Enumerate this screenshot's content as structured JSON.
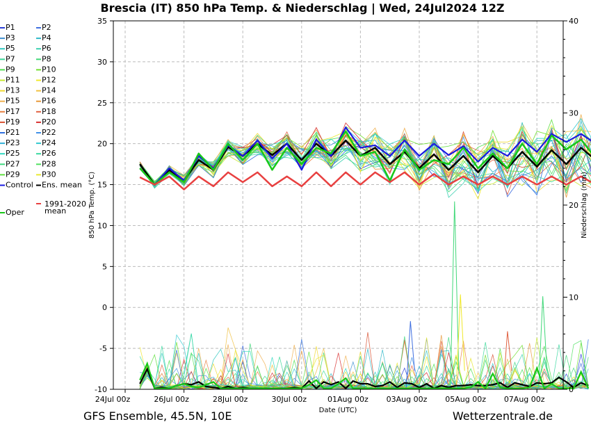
{
  "chart_data": {
    "type": "line",
    "title": "Brescia  (IT)  850 hPa Temp. & Niederschlag | Wed, 24Jul2024 12Z",
    "ylabel": "850 hPa Temp. (°C)",
    "y2label": "Niederschlag (mm)",
    "xlabel": "Date (UTC)",
    "ylim": [
      -10,
      35
    ],
    "y2lim": [
      0,
      40
    ],
    "yticks": [
      "-10",
      "-5",
      "0",
      "5",
      "10",
      "15",
      "20",
      "25",
      "30",
      "35"
    ],
    "y2ticks": [
      "0",
      "10",
      "20",
      "30",
      "40"
    ],
    "x_ticks": [
      "24Jul 00z",
      "26Jul 00z",
      "28Jul 00z",
      "30Jul 00z",
      "01Aug 00z",
      "03Aug 00z",
      "05Aug 00z",
      "07Aug 00z"
    ],
    "x_range_days": [
      0,
      15.5
    ],
    "grid": true,
    "footer_left": "GFS Ensemble, 45.5N, 10E",
    "footer_right": "Wetterzentrale.de",
    "legend": [
      {
        "name": "P1",
        "color": "#2a3fd6"
      },
      {
        "name": "P2",
        "color": "#3f6fe0"
      },
      {
        "name": "P3",
        "color": "#3f8fd0"
      },
      {
        "name": "P4",
        "color": "#2fb8c8"
      },
      {
        "name": "P5",
        "color": "#30c8c0"
      },
      {
        "name": "P6",
        "color": "#3ad0b0"
      },
      {
        "name": "P7",
        "color": "#3cd89a"
      },
      {
        "name": "P8",
        "color": "#40d878"
      },
      {
        "name": "P9",
        "color": "#4ee050"
      },
      {
        "name": "P10",
        "color": "#70e030"
      },
      {
        "name": "P11",
        "color": "#c8e830"
      },
      {
        "name": "P12",
        "color": "#f0e828"
      },
      {
        "name": "P13",
        "color": "#f0d830"
      },
      {
        "name": "P14",
        "color": "#f0c040"
      },
      {
        "name": "P15",
        "color": "#f0b050"
      },
      {
        "name": "P16",
        "color": "#e89838"
      },
      {
        "name": "P17",
        "color": "#e88040"
      },
      {
        "name": "P18",
        "color": "#e06040"
      },
      {
        "name": "P19",
        "color": "#d85030"
      },
      {
        "name": "P20",
        "color": "#d83030"
      },
      {
        "name": "P21",
        "color": "#2f6fe0"
      },
      {
        "name": "P22",
        "color": "#3f90e8"
      },
      {
        "name": "P23",
        "color": "#30b0d8"
      },
      {
        "name": "P24",
        "color": "#30c8d0"
      },
      {
        "name": "P25",
        "color": "#30d8c0"
      },
      {
        "name": "P26",
        "color": "#38d8a0"
      },
      {
        "name": "P27",
        "color": "#40d880"
      },
      {
        "name": "P28",
        "color": "#50e060"
      },
      {
        "name": "P29",
        "color": "#60e040"
      },
      {
        "name": "P30",
        "color": "#e8e830"
      },
      {
        "name": "Control",
        "color": "#1a1ae0"
      },
      {
        "name": "Ens. mean",
        "color": "#000000"
      },
      {
        "name": "Oper",
        "color": "#18c818"
      },
      {
        "name": "1991-2020\nmean",
        "color": "#e84040"
      }
    ],
    "series": [
      {
        "name": "Ens. mean",
        "y": [
          17.5,
          15,
          16.8,
          15.5,
          18,
          16.8,
          19.6,
          18.5,
          20,
          18.6,
          20,
          18,
          20,
          18.5,
          20.4,
          18.5,
          19.5,
          17.5,
          19,
          17,
          18.7,
          16.8,
          18.5,
          16.5,
          18.5,
          17,
          19,
          17.2,
          19.2,
          17.5,
          19.5,
          18,
          20,
          18.5,
          19.5
        ]
      },
      {
        "name": "Control",
        "y": [
          17,
          15,
          17,
          15.5,
          18.5,
          17,
          19.8,
          18.5,
          20.4,
          18.2,
          20,
          16.8,
          20.5,
          18.5,
          22,
          19.5,
          19.8,
          18.5,
          20.4,
          18.5,
          20,
          18.6,
          19.7,
          17.8,
          19.5,
          18.5,
          20.5,
          19,
          21.2,
          20.2,
          21.2,
          20,
          22,
          21,
          22.3
        ]
      },
      {
        "name": "Oper",
        "y": [
          17,
          15,
          16.5,
          15.3,
          18.8,
          16.8,
          20,
          18,
          20,
          16.8,
          19.5,
          17.5,
          19.5,
          18.8,
          21.5,
          18.5,
          19,
          15.5,
          19.3,
          16.8,
          18,
          17.5,
          19.5,
          17,
          18.8,
          17,
          20,
          17.5,
          21,
          19.3,
          20.5,
          18.2,
          20.5,
          17.8,
          19.8
        ]
      },
      {
        "name": "1991-2020\nmean",
        "y": [
          15.9,
          15,
          16,
          14.4,
          16,
          14.8,
          16.5,
          15.3,
          16.5,
          14.8,
          16,
          14.8,
          16.5,
          14.8,
          16.5,
          15,
          16.5,
          15.3,
          16.5,
          15,
          16.3,
          15,
          16,
          15,
          16,
          15,
          16,
          15,
          16,
          15,
          16,
          15,
          16,
          15,
          15.9
        ]
      },
      {
        "name": "Ens. mean precip",
        "y": [
          0.6,
          2.2,
          0.1,
          0.2,
          0.1,
          0.4,
          0.6,
          0.5,
          0.8,
          0.3,
          0.2,
          0.1,
          0.3,
          0.1,
          0.2,
          0.1,
          0.1,
          0.1,
          0.1,
          0.1,
          0.1,
          0.2,
          0.1,
          0.9,
          0.1,
          0.8,
          0.5,
          0.8,
          0.1,
          0.9,
          0.6,
          0.6,
          0.3,
          0.4,
          0.8,
          0.2,
          0.7,
          0.6,
          0.2,
          0.6,
          0.1,
          0.4,
          0.2,
          0.4,
          0.4,
          0.5,
          0.4,
          0.4,
          0.5,
          0.7,
          0.2,
          0.7,
          0.5,
          0.3,
          0.7,
          0.6,
          0.7,
          1.3,
          0.8,
          0.2,
          0.7,
          0.4
        ]
      },
      {
        "name": "Oper precip",
        "y": [
          1,
          2.8,
          0.1,
          0.1,
          0.1,
          0.4,
          0.6,
          0.3,
          0.2,
          0.5,
          0.8,
          0.1,
          0.1,
          0.1,
          0.1,
          0.1,
          0.1,
          0.1,
          0.1,
          0.1,
          0.1,
          0.1,
          0.1,
          0.5,
          1,
          0.1,
          0.1,
          0.6,
          1.2,
          0.1,
          0.1,
          0.1,
          0.1,
          0.1,
          0.1,
          0.1,
          0.1,
          0.1,
          0.1,
          0.1,
          0.1,
          0.1,
          0.1,
          0.1,
          0.1,
          0.2,
          0.8,
          0.1,
          1.7,
          0.2,
          0.1,
          0.1,
          0.1,
          0.2,
          2.3,
          0.1,
          0.6,
          0.1,
          0.1,
          0.1,
          1.9,
          0.1
        ]
      }
    ]
  }
}
